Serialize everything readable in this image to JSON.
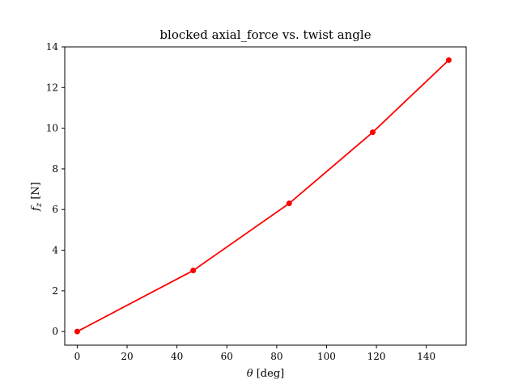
{
  "chart_data": {
    "type": "line",
    "title": "blocked axial_force vs. twist angle",
    "xlabel": "θ [deg]",
    "ylabel": "f_z [N]",
    "xlim": [
      -5,
      156
    ],
    "ylim": [
      -0.67,
      14
    ],
    "x_ticks": [
      0,
      20,
      40,
      60,
      80,
      100,
      120,
      140
    ],
    "y_ticks": [
      0,
      2,
      4,
      6,
      8,
      10,
      12,
      14
    ],
    "grid": false,
    "series": [
      {
        "x": [
          0,
          46.5,
          85.0,
          118.5,
          149.0
        ],
        "values": [
          0.0,
          3.0,
          6.3,
          9.8,
          13.35
        ],
        "color": "#ff0000",
        "marker": "circle"
      }
    ]
  }
}
